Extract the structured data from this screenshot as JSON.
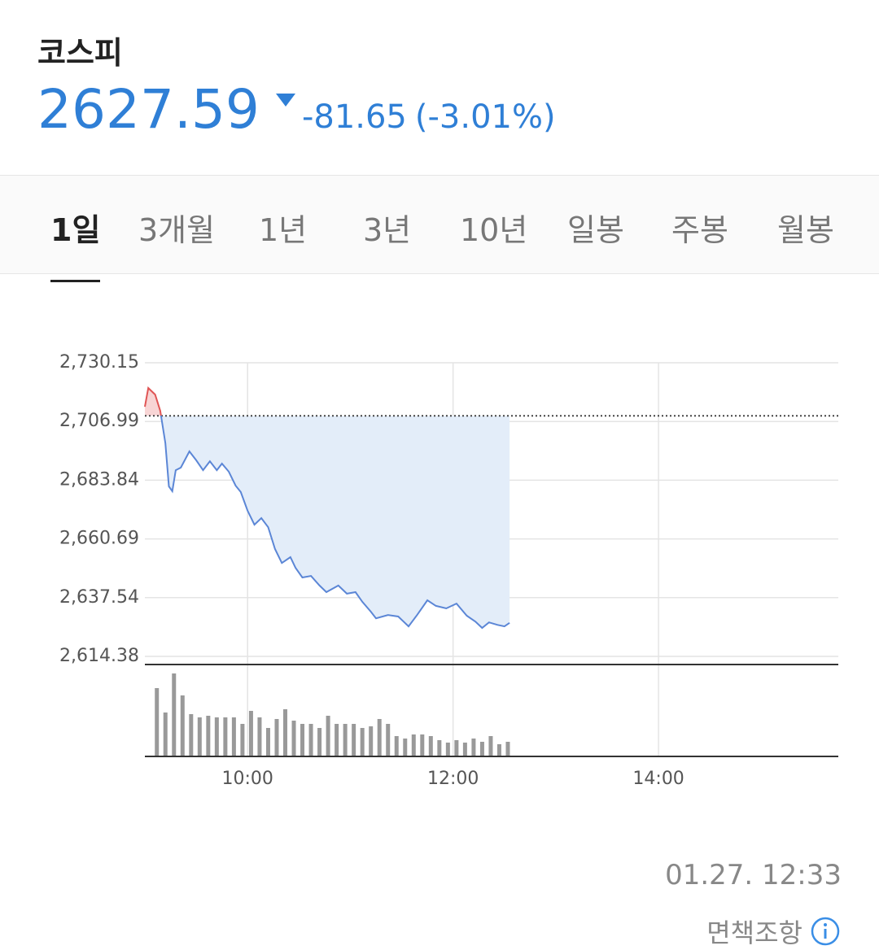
{
  "header": {
    "title": "코스피",
    "price": "2627.59",
    "change": "-81.65",
    "change_rate": "(-3.01%)"
  },
  "tabs": [
    "1일",
    "3개월",
    "1년",
    "3년",
    "10년",
    "일봉",
    "주봉",
    "월봉"
  ],
  "active_tab": 0,
  "chart_data": [
    {
      "type": "line",
      "color": "#5b86d6",
      "fill": "#e3edf9",
      "up_color": "#e05555",
      "up_fill": "#f8d5d5",
      "reference": 2709.24,
      "reference_color": "#444",
      "x": [
        "09:00",
        "09:02",
        "09:06",
        "09:09",
        "09:12",
        "09:14",
        "09:16",
        "09:18",
        "09:21",
        "09:26",
        "09:30",
        "09:34",
        "09:38",
        "09:42",
        "09:45",
        "09:49",
        "09:53",
        "09:56",
        "10:00",
        "10:04",
        "10:08",
        "10:12",
        "10:16",
        "10:20",
        "10:25",
        "10:28",
        "10:32",
        "10:37",
        "10:42",
        "10:46",
        "10:53",
        "10:58",
        "11:03",
        "11:07",
        "11:12",
        "11:15",
        "11:22",
        "11:28",
        "11:34",
        "11:39",
        "11:45",
        "11:50",
        "11:56",
        "12:02",
        "12:08",
        "12:13",
        "12:17",
        "12:21",
        "12:26",
        "12:30",
        "12:33"
      ],
      "values": [
        2712.8,
        2720.2,
        2717.6,
        2711.2,
        2698.4,
        2681.4,
        2679.5,
        2687.8,
        2688.8,
        2695.2,
        2691.7,
        2687.8,
        2691.3,
        2687.8,
        2690.4,
        2687.2,
        2681.7,
        2679.2,
        2671.8,
        2666.3,
        2668.9,
        2665.3,
        2656.7,
        2651.2,
        2653.5,
        2649.3,
        2645.5,
        2646.1,
        2642.3,
        2639.7,
        2642.3,
        2639.1,
        2639.7,
        2635.9,
        2632.0,
        2629.4,
        2630.7,
        2630.1,
        2626.2,
        2630.7,
        2636.5,
        2634.3,
        2633.3,
        2635.2,
        2630.4,
        2628.1,
        2625.6,
        2627.8,
        2626.8,
        2626.2,
        2627.59
      ],
      "xlim": [
        "09:00",
        "15:45"
      ],
      "ylim": [
        2614.38,
        2730.15
      ],
      "yticks": [
        {
          "value": 2730.15,
          "label": "2,730.15"
        },
        {
          "value": 2706.99,
          "label": "2,706.99"
        },
        {
          "value": 2683.84,
          "label": "2,683.84"
        },
        {
          "value": 2660.69,
          "label": "2,660.69"
        },
        {
          "value": 2637.54,
          "label": "2,637.54"
        },
        {
          "value": 2614.38,
          "label": "2,614.38"
        }
      ],
      "grid": true
    },
    {
      "type": "bar",
      "color": "#999999",
      "x": [
        "09:07",
        "09:12",
        "09:17",
        "09:22",
        "09:27",
        "09:32",
        "09:37",
        "09:42",
        "09:47",
        "09:52",
        "09:57",
        "10:02",
        "10:07",
        "10:12",
        "10:17",
        "10:22",
        "10:27",
        "10:32",
        "10:37",
        "10:42",
        "10:47",
        "10:52",
        "10:57",
        "11:02",
        "11:07",
        "11:12",
        "11:17",
        "11:22",
        "11:27",
        "11:32",
        "11:37",
        "11:42",
        "11:47",
        "11:52",
        "11:57",
        "12:02",
        "12:07",
        "12:12",
        "12:17",
        "12:22",
        "12:27",
        "12:32"
      ],
      "values": [
        84,
        54,
        102,
        75,
        52,
        48,
        50,
        48,
        48,
        48,
        40,
        56,
        48,
        35,
        46,
        58,
        44,
        40,
        40,
        35,
        50,
        40,
        40,
        40,
        35,
        37,
        46,
        40,
        25,
        22,
        27,
        27,
        25,
        20,
        17,
        20,
        17,
        22,
        18,
        25,
        15,
        18
      ],
      "xlim": [
        "09:00",
        "15:45"
      ],
      "xticks": [
        "10:00",
        "12:00",
        "14:00"
      ],
      "grid": true
    }
  ],
  "footer": {
    "timestamp": "01.27. 12:33",
    "disclaimer": "면책조항"
  }
}
